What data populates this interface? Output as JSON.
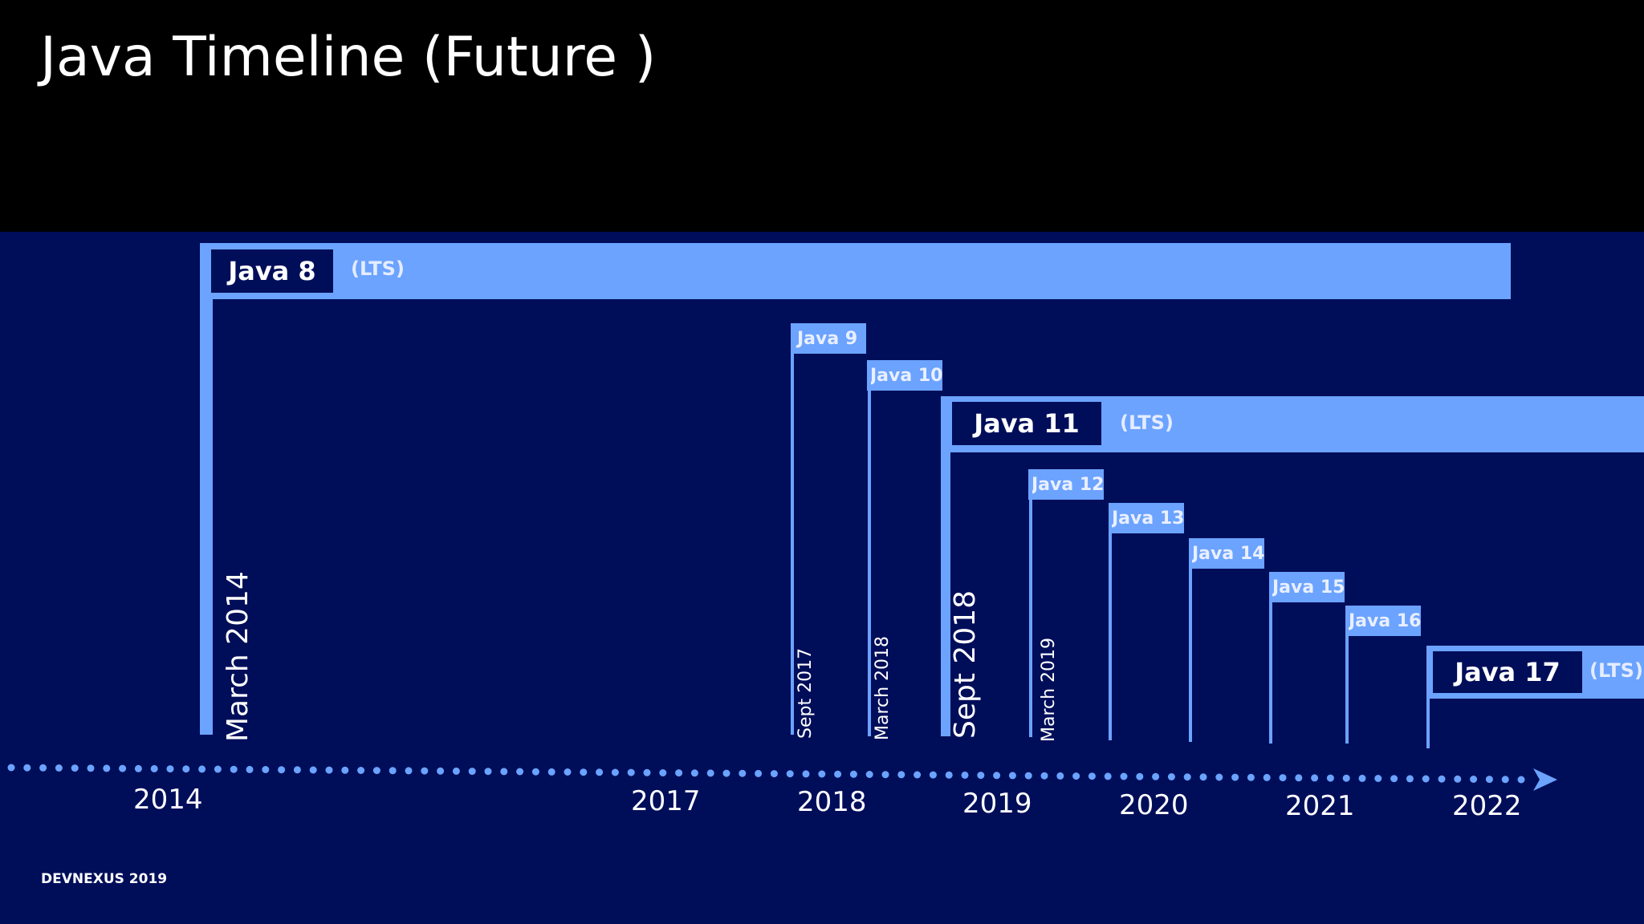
{
  "title": "Java Timeline (Future )",
  "footer": "DEVNEXUS 2019",
  "colors": {
    "background_top": "#000000",
    "background_panel": "#000e5a",
    "accent": "#6ba3ff"
  },
  "releases": {
    "java8": {
      "label": "Java 8",
      "tag": "(LTS)",
      "date": "March 2014"
    },
    "java9": {
      "label": "Java 9",
      "date": "Sept 2017"
    },
    "java10": {
      "label": "Java 10",
      "date": "March 2018"
    },
    "java11": {
      "label": "Java 11",
      "tag": "(LTS)",
      "date": "Sept 2018"
    },
    "java12": {
      "label": "Java 12",
      "date": "March 2019"
    },
    "java13": {
      "label": "Java 13"
    },
    "java14": {
      "label": "Java 14"
    },
    "java15": {
      "label": "Java 15"
    },
    "java16": {
      "label": "Java 16"
    },
    "java17": {
      "label": "Java 17",
      "tag": "(LTS)"
    }
  },
  "years": [
    "2014",
    "2017",
    "2018",
    "2019",
    "2020",
    "2021",
    "2022"
  ]
}
